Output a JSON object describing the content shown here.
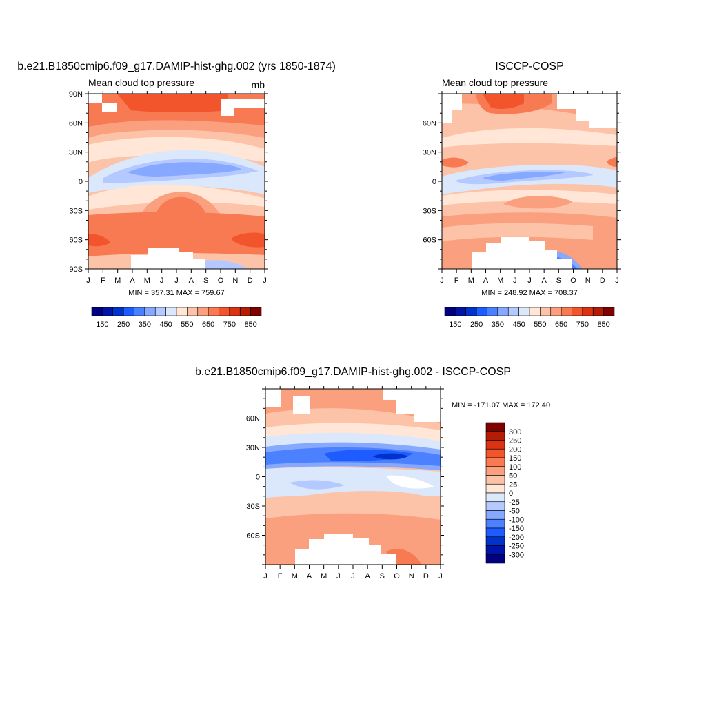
{
  "panels": [
    {
      "key": "model",
      "title": "b.e21.B1850cmip6.f09_g17.DAMIP-hist-ghg.002 (yrs 1850-1874)",
      "left_label": "Mean cloud top pressure",
      "right_label": "mb",
      "stats": "MIN = 357.31 MAX = 759.67",
      "y_ticks": [
        "90N",
        "60N",
        "30N",
        "0",
        "30S",
        "60S",
        "90S"
      ],
      "x_ticks": [
        "J",
        "F",
        "M",
        "A",
        "M",
        "J",
        "J",
        "A",
        "S",
        "O",
        "N",
        "D",
        "J"
      ]
    },
    {
      "key": "obs",
      "title": "ISCCP-COSP",
      "left_label": "Mean cloud top pressure",
      "right_label": "",
      "stats": "MIN = 248.92 MAX = 708.37",
      "y_ticks": [
        "",
        "60N",
        "30N",
        "0",
        "30S",
        "60S",
        ""
      ],
      "x_ticks": [
        "J",
        "F",
        "M",
        "A",
        "M",
        "J",
        "J",
        "A",
        "S",
        "O",
        "N",
        "D",
        "J"
      ]
    },
    {
      "key": "diff",
      "title": "b.e21.B1850cmip6.f09_g17.DAMIP-hist-ghg.002 - ISCCP-COSP",
      "left_label": "",
      "right_label": "",
      "stats": "MIN = -171.07 MAX = 172.40",
      "y_ticks": [
        "",
        "60N",
        "30N",
        "0",
        "30S",
        "60S",
        ""
      ],
      "x_ticks": [
        "J",
        "F",
        "M",
        "A",
        "M",
        "J",
        "J",
        "A",
        "S",
        "O",
        "N",
        "D",
        "J"
      ]
    }
  ],
  "colorbar_abs": {
    "labels": [
      "150",
      "250",
      "350",
      "450",
      "550",
      "650",
      "750",
      "850"
    ],
    "colors": [
      "#000080",
      "#0015a8",
      "#0033cc",
      "#1f5cff",
      "#4b80ff",
      "#86a8ff",
      "#b3c9ff",
      "#dbe8fb",
      "#ffe6d6",
      "#fcc3a8",
      "#fba07e",
      "#f87a52",
      "#f2542b",
      "#dc3212",
      "#b41c06",
      "#800000"
    ]
  },
  "colorbar_diff": {
    "labels": [
      "300",
      "250",
      "200",
      "150",
      "100",
      "50",
      "25",
      "0",
      "-25",
      "-50",
      "-100",
      "-150",
      "-200",
      "-250",
      "-300"
    ],
    "colors": [
      "#800000",
      "#b41c06",
      "#dc3212",
      "#f2542b",
      "#f87a52",
      "#fba07e",
      "#fcc3a8",
      "#ffe6d6",
      "#dbe8fb",
      "#b3c9ff",
      "#86a8ff",
      "#4b80ff",
      "#1f5cff",
      "#0033cc",
      "#0015a8",
      "#000080"
    ]
  },
  "chart_data": [
    {
      "type": "heatmap",
      "title": "b.e21.B1850cmip6.f09_g17.DAMIP-hist-ghg.002 (yrs 1850-1874)",
      "subtitle": "Mean cloud top pressure",
      "units": "mb",
      "x": [
        "J",
        "F",
        "M",
        "A",
        "M",
        "J",
        "J",
        "A",
        "S",
        "O",
        "N",
        "D",
        "J"
      ],
      "y": [
        "90N",
        "60N",
        "30N",
        "0",
        "30S",
        "60S",
        "90S"
      ],
      "min": 357.31,
      "max": 759.67,
      "legend_levels": [
        150,
        200,
        250,
        300,
        350,
        400,
        450,
        500,
        550,
        600,
        650,
        700,
        750,
        800,
        850
      ]
    },
    {
      "type": "heatmap",
      "title": "ISCCP-COSP",
      "subtitle": "Mean cloud top pressure",
      "x": [
        "J",
        "F",
        "M",
        "A",
        "M",
        "J",
        "J",
        "A",
        "S",
        "O",
        "N",
        "D",
        "J"
      ],
      "y": [
        "60N",
        "30N",
        "0",
        "30S",
        "60S"
      ],
      "min": 248.92,
      "max": 708.37,
      "legend_levels": [
        150,
        200,
        250,
        300,
        350,
        400,
        450,
        500,
        550,
        600,
        650,
        700,
        750,
        800,
        850
      ]
    },
    {
      "type": "heatmap",
      "title": "b.e21.B1850cmip6.f09_g17.DAMIP-hist-ghg.002 - ISCCP-COSP",
      "x": [
        "J",
        "F",
        "M",
        "A",
        "M",
        "J",
        "J",
        "A",
        "S",
        "O",
        "N",
        "D",
        "J"
      ],
      "y": [
        "60N",
        "30N",
        "0",
        "30S",
        "60S"
      ],
      "min": -171.07,
      "max": 172.4,
      "legend_levels": [
        300,
        250,
        200,
        150,
        100,
        50,
        25,
        0,
        -25,
        -50,
        -100,
        -150,
        -200,
        -250,
        -300
      ]
    }
  ]
}
